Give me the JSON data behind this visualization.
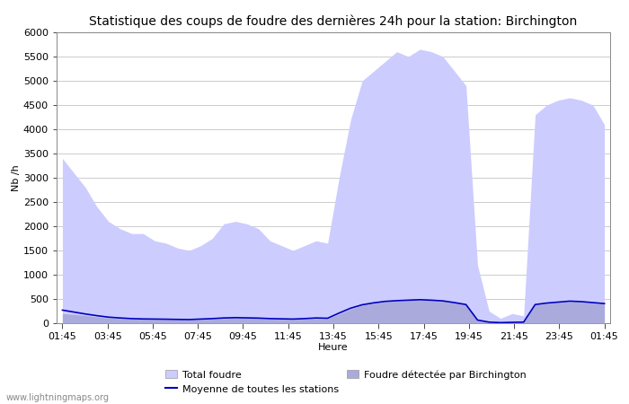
{
  "title": "Statistique des coups de foudre des dernières 24h pour la station: Birchington",
  "xlabel": "Heure",
  "ylabel": "Nb /h",
  "watermark": "www.lightningmaps.org",
  "x_labels": [
    "01:45",
    "03:45",
    "05:45",
    "07:45",
    "09:45",
    "11:45",
    "13:45",
    "15:45",
    "17:45",
    "19:45",
    "21:45",
    "23:45",
    "01:45"
  ],
  "ylim": [
    0,
    6000
  ],
  "yticks": [
    0,
    500,
    1000,
    1500,
    2000,
    2500,
    3000,
    3500,
    4000,
    4500,
    5000,
    5500,
    6000
  ],
  "total_foudre_color": "#ccccff",
  "birchington_color": "#aaaadd",
  "moyenne_color": "#0000bb",
  "background_color": "#ffffff",
  "grid_color": "#cccccc",
  "total_foudre": [
    3400,
    3100,
    2800,
    2400,
    2100,
    1950,
    1850,
    1850,
    1700,
    1650,
    1550,
    1500,
    1600,
    1750,
    2050,
    2100,
    2050,
    1950,
    1700,
    1600,
    1500,
    1600,
    1700,
    1650,
    3000,
    4200,
    5000,
    5200,
    5400,
    5600,
    5500,
    5650,
    5600,
    5500,
    5200,
    4900,
    1200,
    250,
    100,
    200,
    150,
    4300,
    4500,
    4600,
    4650,
    4600,
    4500,
    4100
  ],
  "birchington": [
    200,
    180,
    160,
    130,
    110,
    95,
    85,
    80,
    75,
    75,
    70,
    65,
    75,
    85,
    95,
    105,
    100,
    95,
    85,
    80,
    75,
    85,
    95,
    90,
    190,
    290,
    370,
    410,
    440,
    460,
    470,
    480,
    475,
    460,
    420,
    380,
    55,
    15,
    8,
    12,
    18,
    375,
    405,
    425,
    445,
    435,
    415,
    395
  ],
  "moyenne": [
    270,
    230,
    190,
    155,
    125,
    108,
    95,
    88,
    85,
    82,
    78,
    75,
    85,
    95,
    108,
    115,
    110,
    105,
    95,
    90,
    85,
    95,
    108,
    102,
    210,
    310,
    380,
    420,
    450,
    465,
    475,
    485,
    475,
    460,
    425,
    385,
    65,
    22,
    12,
    18,
    22,
    385,
    415,
    435,
    455,
    445,
    425,
    405
  ]
}
